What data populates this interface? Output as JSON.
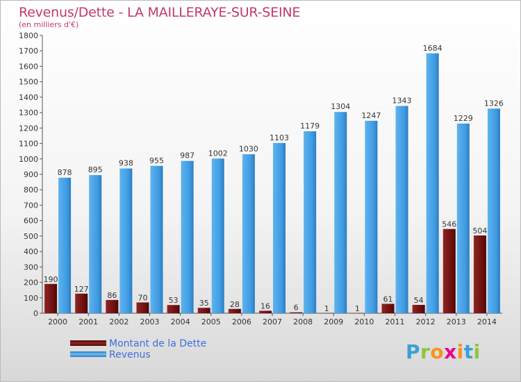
{
  "header": {
    "title": "Revenus/Dette - LA MAILLERAYE-SUR-SEINE",
    "subtitle": "(en milliers d'€)"
  },
  "chart_data": {
    "type": "bar",
    "title": "Revenus/Dette - LA MAILLERAYE-SUR-SEINE",
    "subtitle": "(en milliers d'€)",
    "categories": [
      "2000",
      "2001",
      "2002",
      "2003",
      "2004",
      "2005",
      "2006",
      "2007",
      "2008",
      "2009",
      "2010",
      "2011",
      "2012",
      "2013",
      "2014"
    ],
    "series": [
      {
        "name": "Montant de la Dette",
        "color": "#7a1010",
        "values": [
          190,
          127,
          86,
          70,
          53,
          35,
          28,
          16,
          6,
          1,
          1,
          61,
          54,
          546,
          504
        ]
      },
      {
        "name": "Revenus",
        "color": "#3f9ae0",
        "values": [
          878,
          895,
          938,
          955,
          987,
          1002,
          1030,
          1103,
          1179,
          1304,
          1247,
          1343,
          1684,
          1229,
          1326
        ]
      }
    ],
    "ylim": [
      0,
      1800
    ],
    "yticks": [
      0,
      100,
      200,
      300,
      400,
      500,
      600,
      700,
      800,
      900,
      1000,
      1100,
      1200,
      1300,
      1400,
      1500,
      1600,
      1700,
      1800
    ],
    "grid": false,
    "legend": "bottom-left"
  },
  "legend": {
    "items": [
      {
        "label": "Montant de la Dette",
        "color": "#6b0f0f"
      },
      {
        "label": "Revenus",
        "color": "#3f9ae0"
      }
    ]
  },
  "logo": {
    "letters": [
      "P",
      "r",
      "o",
      "x",
      "i",
      "t",
      "i"
    ]
  }
}
